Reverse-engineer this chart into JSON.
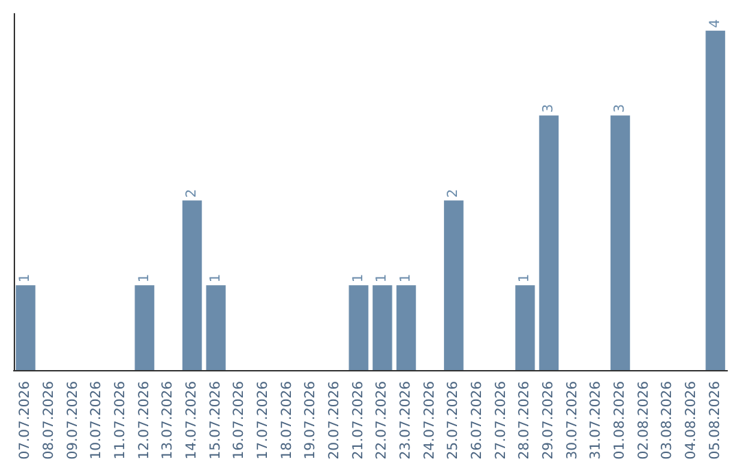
{
  "chart_data": {
    "type": "bar",
    "categories": [
      "07.07.2026",
      "08.07.2026",
      "09.07.2026",
      "10.07.2026",
      "11.07.2026",
      "12.07.2026",
      "13.07.2026",
      "14.07.2026",
      "15.07.2026",
      "16.07.2026",
      "17.07.2026",
      "18.07.2026",
      "19.07.2026",
      "20.07.2026",
      "21.07.2026",
      "22.07.2026",
      "23.07.2026",
      "24.07.2026",
      "25.07.2026",
      "26.07.2026",
      "27.07.2026",
      "28.07.2026",
      "29.07.2026",
      "30.07.2026",
      "31.07.2026",
      "01.08.2026",
      "02.08.2026",
      "03.08.2026",
      "04.08.2026",
      "05.08.2026"
    ],
    "values": [
      1,
      null,
      null,
      null,
      null,
      1,
      null,
      2,
      1,
      null,
      null,
      null,
      null,
      null,
      1,
      1,
      1,
      null,
      2,
      null,
      null,
      1,
      3,
      null,
      null,
      3,
      null,
      null,
      null,
      4
    ],
    "color": "#6b8cab",
    "ylim": [
      0,
      4.2
    ],
    "data_labels": true,
    "tick_labels": "x"
  }
}
